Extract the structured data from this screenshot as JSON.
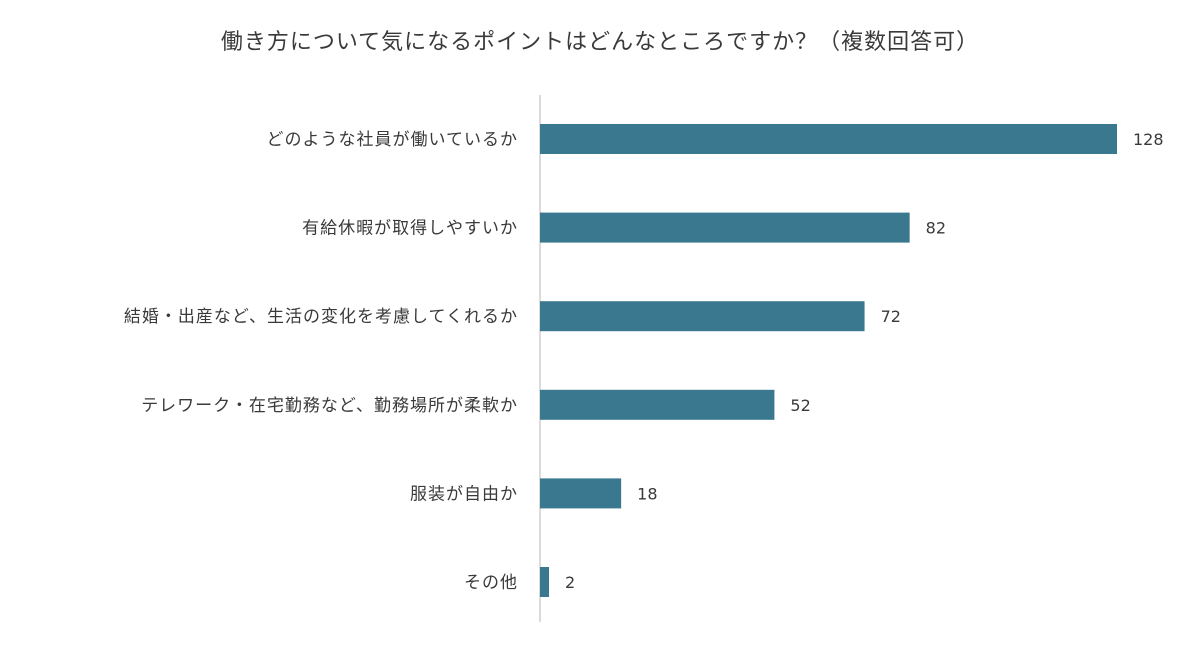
{
  "chart_data": {
    "type": "bar",
    "orientation": "horizontal",
    "title": "働き方について気になるポイントはどんなところですか？（複数回答可）",
    "categories": [
      "どのような社員が働いているか",
      "有給休暇が取得しやすいか",
      "結婚・出産など、生活の変化を考慮してくれるか",
      "テレワーク・在宅勤務など、勤務場所が柔軟か",
      "服装が自由か",
      "その他"
    ],
    "values": [
      128,
      82,
      72,
      52,
      18,
      2
    ],
    "xlim": [
      0,
      140
    ],
    "grid": false,
    "legend": "none",
    "bar_color": "#3a7890",
    "axis_color": "#cfcfcf"
  }
}
